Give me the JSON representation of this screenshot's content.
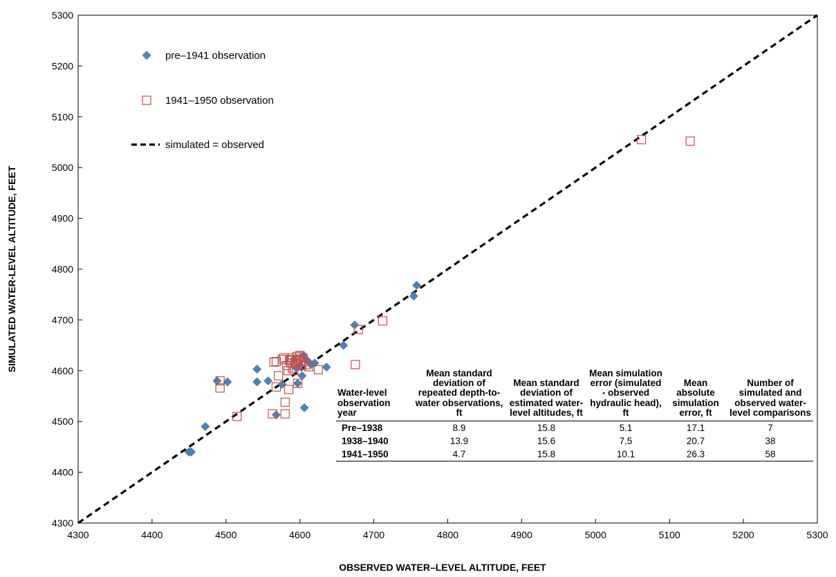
{
  "chart_data": {
    "type": "scatter",
    "xlabel": "OBSERVED WATER–LEVEL ALTITUDE, FEET",
    "ylabel": "SIMULATED WATER-LEVEL ALTITUDE, FEET",
    "xlim": [
      4300,
      5300
    ],
    "ylim": [
      4300,
      5300
    ],
    "x_ticks": [
      "4300",
      "4400",
      "4500",
      "4600",
      "4700",
      "4800",
      "4900",
      "5000",
      "5100",
      "5200",
      "5300"
    ],
    "y_ticks": [
      "4300",
      "4400",
      "4500",
      "4600",
      "4700",
      "4800",
      "4900",
      "5000",
      "5100",
      "5200",
      "5300"
    ],
    "grid": false,
    "legend_position": "top-left",
    "series": [
      {
        "name": "pre–1941 observation",
        "marker": "diamond",
        "color": "#4f81bd",
        "points": [
          [
            4450,
            4440
          ],
          [
            4453,
            4440
          ],
          [
            4472,
            4490
          ],
          [
            4488,
            4580
          ],
          [
            4502,
            4578
          ],
          [
            4542,
            4603
          ],
          [
            4542,
            4578
          ],
          [
            4557,
            4580
          ],
          [
            4568,
            4513
          ],
          [
            4576,
            4573
          ],
          [
            4592,
            4622
          ],
          [
            4595,
            4605
          ],
          [
            4597,
            4575
          ],
          [
            4600,
            4610
          ],
          [
            4603,
            4590
          ],
          [
            4605,
            4630
          ],
          [
            4606,
            4527
          ],
          [
            4610,
            4620
          ],
          [
            4615,
            4612
          ],
          [
            4620,
            4615
          ],
          [
            4636,
            4607
          ],
          [
            4659,
            4650
          ],
          [
            4674,
            4690
          ],
          [
            4754,
            4747
          ],
          [
            4758,
            4768
          ]
        ]
      },
      {
        "name": "1941–1950 observation",
        "marker": "square-open",
        "color": "#c0504d",
        "points": [
          [
            4492,
            4580
          ],
          [
            4492,
            4566
          ],
          [
            4515,
            4510
          ],
          [
            4563,
            4515
          ],
          [
            4565,
            4617
          ],
          [
            4568,
            4618
          ],
          [
            4568,
            4568
          ],
          [
            4571,
            4590
          ],
          [
            4576,
            4622
          ],
          [
            4578,
            4625
          ],
          [
            4580,
            4515
          ],
          [
            4580,
            4538
          ],
          [
            4582,
            4610
          ],
          [
            4584,
            4600
          ],
          [
            4585,
            4563
          ],
          [
            4586,
            4620
          ],
          [
            4588,
            4622
          ],
          [
            4588,
            4615
          ],
          [
            4590,
            4605
          ],
          [
            4590,
            4625
          ],
          [
            4592,
            4600
          ],
          [
            4594,
            4615
          ],
          [
            4595,
            4618
          ],
          [
            4596,
            4628
          ],
          [
            4597,
            4575
          ],
          [
            4598,
            4622
          ],
          [
            4600,
            4630
          ],
          [
            4601,
            4620
          ],
          [
            4602,
            4610
          ],
          [
            4604,
            4625
          ],
          [
            4605,
            4618
          ],
          [
            4608,
            4612
          ],
          [
            4612,
            4608
          ],
          [
            4625,
            4602
          ],
          [
            4675,
            4612
          ],
          [
            4679,
            4681
          ],
          [
            4712,
            4698
          ],
          [
            5062,
            5055
          ],
          [
            5128,
            5052
          ]
        ]
      }
    ],
    "reference_line": {
      "label": "simulated = observed",
      "style": "dashed"
    }
  },
  "table": {
    "headers": [
      "Water-level observation year",
      "Mean standard deviation of repeated depth-to-water observations, ft",
      "Mean standard deviation of estimated water-level altitudes, ft",
      "Mean simulation error (simulated - observed hydraulic head), ft",
      "Mean absolute simulation error, ft",
      "Number of simulated and observed water-level comparisons"
    ],
    "rows": [
      [
        "Pre–1938",
        "8.9",
        "15.8",
        "5.1",
        "17.1",
        "7"
      ],
      [
        "1938–1940",
        "13.9",
        "15.6",
        "7.5",
        "20.7",
        "38"
      ],
      [
        "1941–1950",
        "4.7",
        "15.8",
        "10.1",
        "26.3",
        "58"
      ]
    ]
  }
}
